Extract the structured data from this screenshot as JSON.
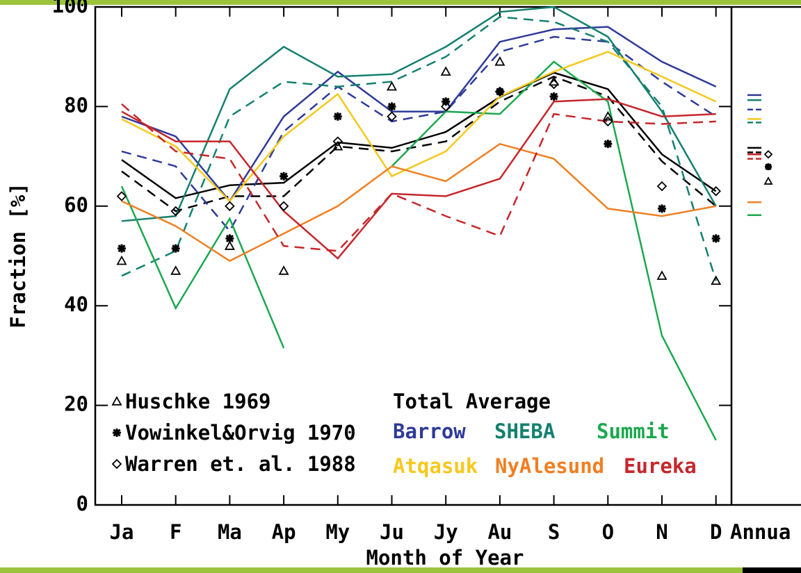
{
  "chart_data": {
    "type": "line",
    "ylabel": "Fraction [%]",
    "xlabel": "Month of Year",
    "categories": [
      "Ja",
      "F",
      "Ma",
      "Ap",
      "My",
      "Ju",
      "Jy",
      "Au",
      "S",
      "O",
      "N",
      "D"
    ],
    "annual_label": "Annua",
    "ylim": [
      0,
      100
    ],
    "yticks": [
      0,
      20,
      40,
      60,
      80,
      100
    ],
    "series": [
      {
        "name": "Total Average",
        "color": "#000000",
        "values": [
          69.3,
          61.6,
          64.2,
          64.7,
          72.8,
          71.7,
          74.9,
          81.9,
          86.8,
          83.5,
          70.4,
          63.0
        ],
        "annual": 71.7,
        "dashed_values": [
          67,
          59,
          62,
          62,
          72,
          71,
          73,
          81,
          86,
          82,
          69,
          60
        ],
        "dashed_annual": 70.8
      },
      {
        "name": "Barrow",
        "color": "#2e3a98",
        "values": [
          78,
          74,
          61,
          78,
          87,
          79,
          79,
          93,
          95.5,
          96,
          89,
          84
        ],
        "annual": 82.3,
        "dashed_values": [
          71,
          68,
          55,
          75,
          84,
          77,
          79,
          91,
          94,
          93,
          85,
          78
        ],
        "dashed_annual": 79.4
      },
      {
        "name": "SHEBA",
        "color": "#14806f",
        "values": [
          57,
          58,
          83.5,
          92,
          86,
          86.5,
          92,
          99,
          100,
          94,
          79,
          60
        ],
        "annual": 81.3,
        "dashed_values": [
          46,
          51,
          78,
          85,
          84,
          85,
          90,
          98,
          97,
          93,
          80,
          45
        ],
        "dashed_annual": 76.8
      },
      {
        "name": "Summit",
        "color": "#1ba84e",
        "values": [
          64,
          39.5,
          57.5,
          31.5,
          null,
          68,
          79,
          78.5,
          89,
          81,
          34,
          13
        ],
        "annual": 58.2
      },
      {
        "name": "Atqasuk",
        "color": "#f6c81c",
        "values": [
          77.5,
          72,
          61,
          74,
          82.5,
          66,
          71,
          82,
          87,
          91,
          86,
          81
        ],
        "annual": 77.5
      },
      {
        "name": "NyAlesund",
        "color": "#f07f22",
        "values": [
          61,
          56,
          49,
          54.5,
          60,
          68,
          65,
          72.5,
          69.5,
          59.5,
          58,
          60
        ],
        "annual": 60.8
      },
      {
        "name": "Eureka",
        "color": "#c6262b",
        "values": [
          79,
          73,
          73,
          59,
          49.5,
          62.5,
          62,
          65.5,
          81,
          81.5,
          78,
          78.5
        ],
        "annual": 70.4,
        "dashed_values": [
          80.5,
          71,
          69.5,
          52,
          51,
          62.5,
          58,
          54,
          78.5,
          77,
          76.5,
          77
        ],
        "dashed_annual": 69.5
      }
    ],
    "observations": [
      {
        "name": "Huschke 1969",
        "marker": "triangle",
        "values": [
          49,
          47,
          52,
          47,
          72,
          84,
          87,
          89,
          85,
          78,
          46,
          45
        ],
        "annual": 65
      },
      {
        "name": "Vowinkel&Orvig 1970",
        "marker": "asterisk",
        "values": [
          51.5,
          51.5,
          53.5,
          66,
          78,
          80,
          81,
          83,
          82,
          72.5,
          59.5,
          53.5
        ],
        "annual": 67.9
      },
      {
        "name": "Warren et. al. 1988",
        "marker": "diamond",
        "values": [
          62,
          59,
          60,
          60,
          73,
          78,
          80,
          83,
          84.5,
          77,
          64,
          63
        ],
        "annual": 70.4
      }
    ]
  }
}
